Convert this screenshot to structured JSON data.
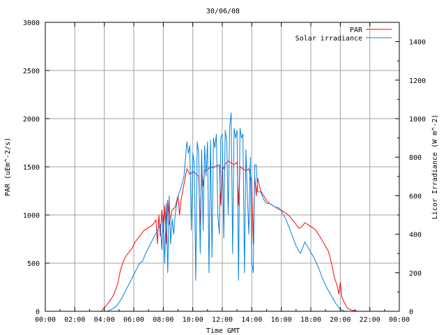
{
  "chart_data": {
    "type": "line",
    "title": "30/06/08",
    "xlabel": "Time GMT",
    "ylabel": "PAR (uEm^-2/s)",
    "y2label": "Licor Irradiance (W m^-2)",
    "xlim": [
      0,
      24
    ],
    "ylim": [
      0,
      3000
    ],
    "y2lim": [
      0,
      1500
    ],
    "x_ticks": [
      "00:00",
      "02:00",
      "04:00",
      "06:00",
      "08:00",
      "10:00",
      "12:00",
      "14:00",
      "16:00",
      "18:00",
      "20:00",
      "22:00",
      "00:00"
    ],
    "y_ticks": [
      0,
      500,
      1000,
      1500,
      2000,
      2500,
      3000
    ],
    "y2_ticks": [
      0,
      200,
      400,
      600,
      800,
      1000,
      1200,
      1400
    ],
    "grid": true,
    "legend_position": "top-right",
    "series": [
      {
        "name": "PAR",
        "axis": "left",
        "color": "#ff0000",
        "x": [
          0,
          3.8,
          4.0,
          4.3,
          4.6,
          4.9,
          5.1,
          5.3,
          5.5,
          5.7,
          5.9,
          6.1,
          6.3,
          6.5,
          6.7,
          6.9,
          7.1,
          7.3,
          7.5,
          7.6,
          7.7,
          7.8,
          7.9,
          8.0,
          8.1,
          8.2,
          8.3,
          8.4,
          8.6,
          8.8,
          9.0,
          9.1,
          9.2,
          9.4,
          9.6,
          9.8,
          10.0,
          10.2,
          10.4,
          10.5,
          10.6,
          10.7,
          10.8,
          11.0,
          11.2,
          11.4,
          11.6,
          11.8,
          11.9,
          12.0,
          12.1,
          12.2,
          12.4,
          12.6,
          12.8,
          13.0,
          13.1,
          13.2,
          13.4,
          13.6,
          13.8,
          14.0,
          14.1,
          14.2,
          14.3,
          14.4,
          14.6,
          14.8,
          15.0,
          15.2,
          15.4,
          15.6,
          15.8,
          16.0,
          16.3,
          16.6,
          16.9,
          17.2,
          17.4,
          17.6,
          17.8,
          18.0,
          18.3,
          18.6,
          18.9,
          19.2,
          19.4,
          19.6,
          19.8,
          19.9,
          20.0,
          20.1,
          20.3,
          20.5,
          20.8,
          21.2,
          24
        ],
        "values": [
          0,
          0,
          40,
          90,
          160,
          280,
          430,
          520,
          580,
          620,
          660,
          720,
          760,
          800,
          840,
          860,
          880,
          900,
          950,
          700,
          1000,
          780,
          1050,
          820,
          1100,
          700,
          1150,
          900,
          1050,
          1080,
          1200,
          1000,
          1150,
          1320,
          1480,
          1420,
          1450,
          1430,
          1400,
          900,
          1480,
          1300,
          1460,
          1470,
          1500,
          1490,
          1510,
          1520,
          1100,
          1500,
          1480,
          1530,
          1560,
          1540,
          1520,
          1550,
          1100,
          1500,
          1480,
          1460,
          1480,
          1350,
          700,
          1400,
          1200,
          1380,
          1250,
          1200,
          1150,
          1120,
          1100,
          1080,
          1060,
          1050,
          1020,
          980,
          920,
          860,
          880,
          920,
          900,
          880,
          850,
          780,
          700,
          620,
          500,
          350,
          260,
          180,
          300,
          150,
          80,
          30,
          10,
          0,
          0
        ]
      },
      {
        "name": "Solar irradiance",
        "axis": "right",
        "color": "#0080e0",
        "x": [
          0,
          4.2,
          4.5,
          4.8,
          5.0,
          5.2,
          5.4,
          5.6,
          5.8,
          6.0,
          6.2,
          6.4,
          6.6,
          6.8,
          7.0,
          7.2,
          7.4,
          7.6,
          7.8,
          7.9,
          8.0,
          8.1,
          8.2,
          8.3,
          8.4,
          8.5,
          8.6,
          8.7,
          8.8,
          9.0,
          9.2,
          9.4,
          9.6,
          9.7,
          9.8,
          9.9,
          10.0,
          10.1,
          10.2,
          10.3,
          10.4,
          10.5,
          10.6,
          10.7,
          10.8,
          10.9,
          11.0,
          11.1,
          11.2,
          11.3,
          11.4,
          11.5,
          11.6,
          11.7,
          11.8,
          11.9,
          12.0,
          12.1,
          12.2,
          12.3,
          12.4,
          12.5,
          12.6,
          12.7,
          12.8,
          12.9,
          13.0,
          13.1,
          13.2,
          13.3,
          13.4,
          13.5,
          13.6,
          13.7,
          13.8,
          13.9,
          14.0,
          14.1,
          14.2,
          14.3,
          14.4,
          14.6,
          14.8,
          15.0,
          15.2,
          15.4,
          15.6,
          15.8,
          16.0,
          16.3,
          16.6,
          16.8,
          17.0,
          17.3,
          17.6,
          17.9,
          18.2,
          18.5,
          18.8,
          19.1,
          19.4,
          19.7,
          20.0,
          20.3,
          20.6,
          21.0,
          24
        ],
        "values": [
          0,
          0,
          10,
          25,
          45,
          70,
          100,
          130,
          160,
          190,
          220,
          250,
          260,
          300,
          330,
          360,
          390,
          420,
          450,
          320,
          500,
          250,
          560,
          200,
          600,
          350,
          480,
          400,
          500,
          600,
          640,
          700,
          880,
          820,
          860,
          420,
          820,
          760,
          160,
          880,
          820,
          300,
          840,
          420,
          860,
          700,
          880,
          200,
          890,
          280,
          900,
          850,
          920,
          500,
          400,
          900,
          920,
          380,
          940,
          880,
          500,
          960,
          1030,
          300,
          950,
          900,
          940,
          160,
          950,
          900,
          920,
          200,
          840,
          600,
          400,
          800,
          250,
          200,
          760,
          760,
          620,
          620,
          580,
          560,
          560,
          550,
          540,
          540,
          520,
          480,
          420,
          380,
          340,
          300,
          360,
          320,
          280,
          230,
          170,
          120,
          80,
          40,
          10,
          0,
          0,
          0,
          0
        ]
      }
    ]
  }
}
